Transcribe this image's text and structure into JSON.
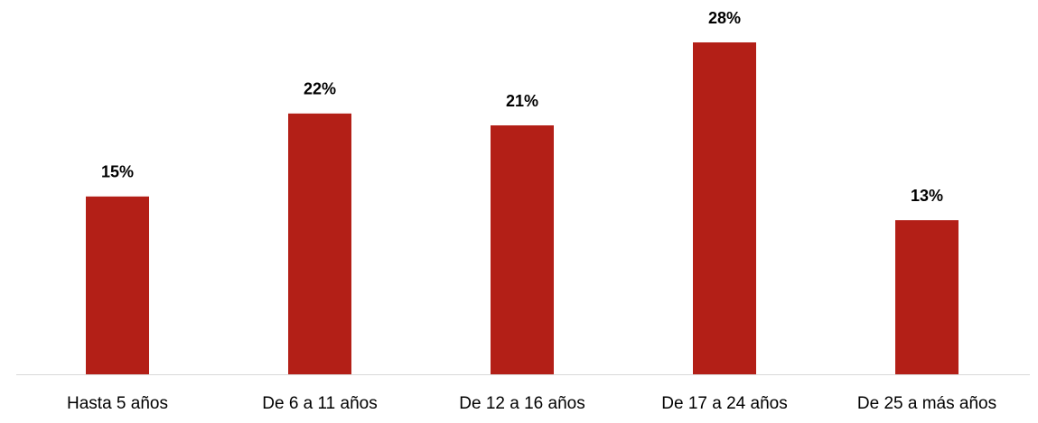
{
  "chart_data": {
    "type": "bar",
    "categories": [
      "Hasta 5 años",
      "De 6 a 11 años",
      "De 12 a 16 años",
      "De 17 a 24 años",
      "De 25 a más años"
    ],
    "values": [
      15,
      22,
      21,
      28,
      13
    ],
    "value_labels": [
      "15%",
      "22%",
      "21%",
      "28%",
      "13%"
    ],
    "color": "#b31f17"
  }
}
